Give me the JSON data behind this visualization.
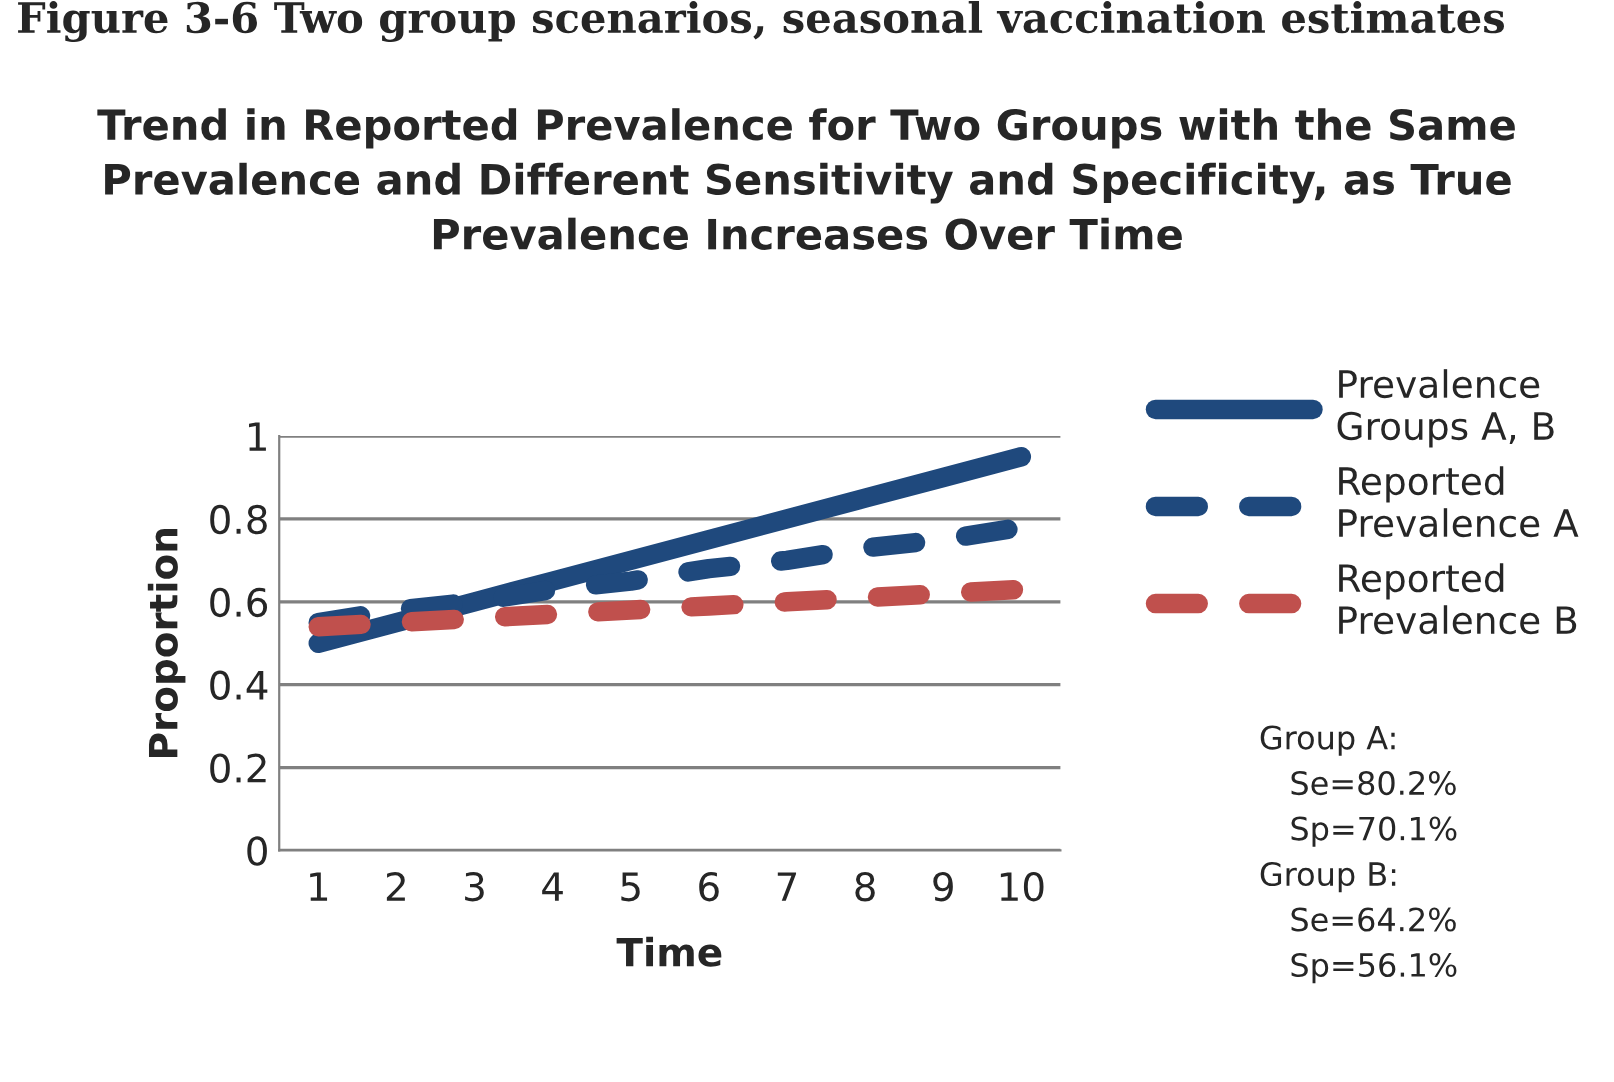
{
  "chart_data": {
    "type": "line",
    "title": "Trend in Reported Prevalence for Two Groups with the Same Prevalence and Different Sensitivity and Specificity, as True Prevalence Increases Over Time",
    "xlabel": "Time",
    "ylabel": "Proportion",
    "categories": [
      "1",
      "2",
      "3",
      "4",
      "5",
      "6",
      "7",
      "8",
      "9",
      "10"
    ],
    "series": [
      {
        "name": "Prevalence Groups A, B",
        "color": "#1f497d",
        "line_style": "solid",
        "values": [
          0.5,
          0.55,
          0.6,
          0.65,
          0.7,
          0.75,
          0.8,
          0.85,
          0.9,
          0.95
        ]
      },
      {
        "name": "Reported Prevalence A",
        "color": "#1f497d",
        "line_style": "dashed",
        "values": [
          0.55,
          0.58,
          0.6,
          0.63,
          0.65,
          0.68,
          0.7,
          0.73,
          0.75,
          0.78
        ]
      },
      {
        "name": "Reported Prevalence B",
        "color": "#c0504d",
        "line_style": "dashed",
        "values": [
          0.54,
          0.55,
          0.56,
          0.57,
          0.58,
          0.59,
          0.6,
          0.61,
          0.62,
          0.63
        ]
      }
    ],
    "ylim": [
      0,
      1
    ],
    "yticks": [
      0,
      0.2,
      0.4,
      0.6,
      0.8,
      1
    ],
    "grid": "y",
    "legend": "right",
    "marker": "none",
    "annotations": [
      "Figure 3-6 Two group scenarios, seasonal vaccination estimates",
      "Group A:\n   Se=80.2%\n   Sp=70.1%\nGroup B:\n   Se=64.2%\n   Sp=56.1%"
    ]
  }
}
